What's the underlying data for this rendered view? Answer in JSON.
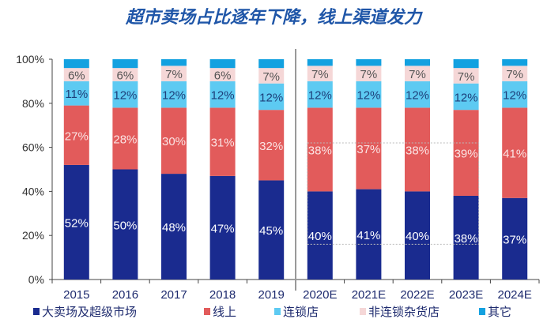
{
  "title": "超市卖场占比逐年下降，线上渠道发力",
  "chart_data": {
    "type": "bar",
    "stacked": true,
    "title": "超市卖场占比逐年下降，线上渠道发力",
    "xlabel": "",
    "ylabel": "",
    "ylim": [
      0,
      100
    ],
    "yticks": [
      "0%",
      "20%",
      "40%",
      "60%",
      "80%",
      "100%"
    ],
    "categories": [
      "2015",
      "2016",
      "2017",
      "2018",
      "2019",
      "2020E",
      "2021E",
      "2022E",
      "2023E",
      "2024E"
    ],
    "legend_position": "bottom",
    "grid": false,
    "series": [
      {
        "name": "大卖场及超级市场",
        "color": "#1a2b8f",
        "label_color": "#ffffff",
        "values": [
          52,
          50,
          48,
          47,
          45,
          40,
          41,
          40,
          38,
          37
        ],
        "labels": [
          "52%",
          "50%",
          "48%",
          "47%",
          "45%",
          "40%",
          "41%",
          "40%",
          "38%",
          "37%"
        ]
      },
      {
        "name": "线上",
        "color": "#e25b5b",
        "label_color": "#fbe3e3",
        "values": [
          27,
          28,
          30,
          31,
          32,
          38,
          37,
          38,
          39,
          41
        ],
        "labels": [
          "27%",
          "28%",
          "30%",
          "31%",
          "32%",
          "38%",
          "37%",
          "38%",
          "39%",
          "41%"
        ]
      },
      {
        "name": "连锁店",
        "color": "#5dcaf2",
        "label_color": "#1d3f7a",
        "values": [
          11,
          12,
          12,
          12,
          12,
          12,
          12,
          12,
          12,
          12
        ],
        "labels": [
          "11%",
          "12%",
          "12%",
          "12%",
          "12%",
          "12%",
          "12%",
          "12%",
          "12%",
          "12%"
        ]
      },
      {
        "name": "非连锁杂货店",
        "color": "#f5d7d7",
        "label_color": "#555555",
        "values": [
          6,
          6,
          7,
          6,
          7,
          7,
          7,
          7,
          7,
          7
        ],
        "labels": [
          "6%",
          "6%",
          "7%",
          "6%",
          "7%",
          "7%",
          "7%",
          "7%",
          "7%",
          "7%"
        ]
      },
      {
        "name": "其它",
        "color": "#13a1e0",
        "label_color": "",
        "values": [
          4,
          4,
          3,
          4,
          4,
          3,
          3,
          3,
          4,
          3
        ],
        "labels": []
      }
    ]
  }
}
